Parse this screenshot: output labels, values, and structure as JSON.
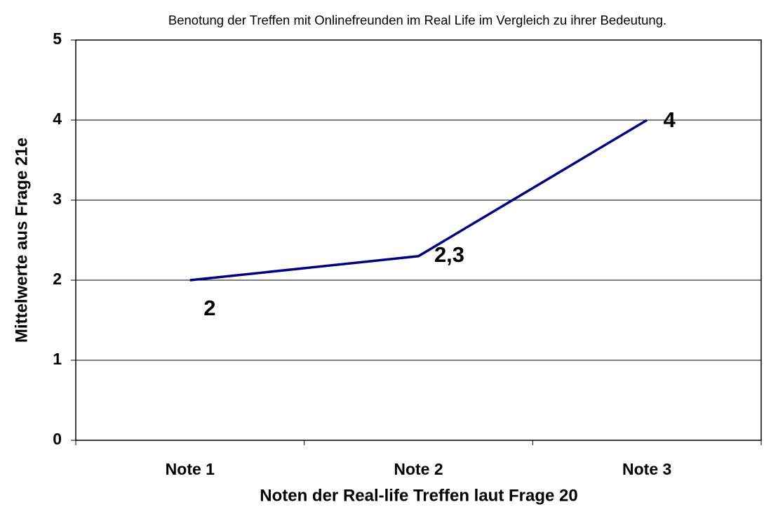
{
  "chart_data": {
    "type": "line",
    "title": "Benotung der Treffen mit Onlinefreunden im Real Life im Vergleich zu ihrer Bedeutung.",
    "x_label": "Noten der Real-life Treffen laut Frage 20",
    "y_label": "Mittelwerte aus Frage 21e",
    "categories": [
      "Note 1",
      "Note 2",
      "Note 3"
    ],
    "series": [
      {
        "name": "Mittelwerte",
        "color": "#000080",
        "values": [
          2,
          2.3,
          4
        ],
        "value_labels": [
          "2",
          "2,3",
          "4"
        ]
      }
    ],
    "ylim": [
      0,
      5
    ],
    "yticks": [
      0,
      1,
      2,
      3,
      4,
      5
    ],
    "grid": true
  }
}
